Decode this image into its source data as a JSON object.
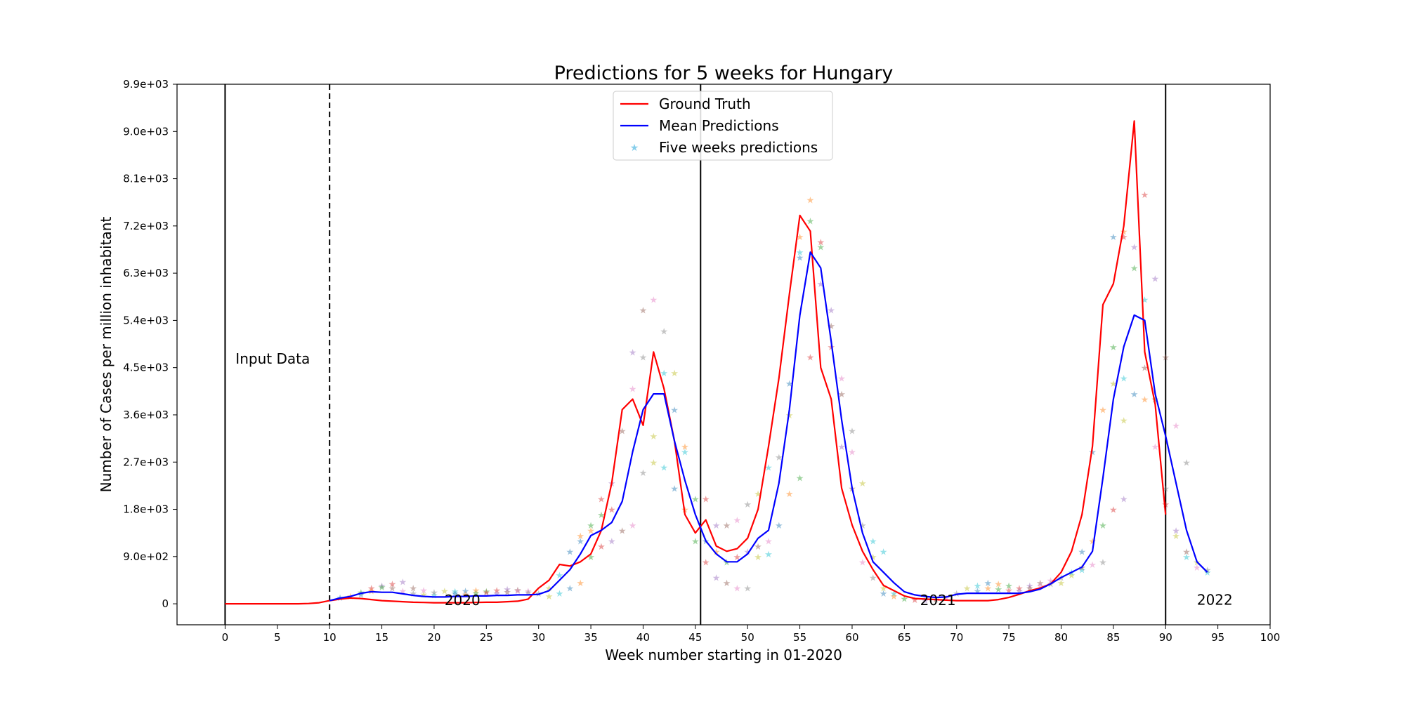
{
  "chart_data": {
    "type": "line",
    "title": "Predictions for 5 weeks for Hungary",
    "xlabel": "Week number starting in 01-2020",
    "ylabel": "Number of Cases per million inhabitant",
    "xlim": [
      -4.6,
      100
    ],
    "ylim": [
      -400,
      9900
    ],
    "x_ticks": [
      0,
      5,
      10,
      15,
      20,
      25,
      30,
      35,
      40,
      45,
      50,
      55,
      60,
      65,
      70,
      75,
      80,
      85,
      90,
      95,
      100
    ],
    "y_ticks": [
      0,
      900,
      1800,
      2700,
      3600,
      4500,
      5400,
      6300,
      7200,
      8100,
      9000,
      9900
    ],
    "y_tick_labels": [
      "0",
      "9.0e+02",
      "1.8e+03",
      "2.7e+03",
      "3.6e+03",
      "4.5e+03",
      "5.4e+03",
      "6.3e+03",
      "7.2e+03",
      "8.1e+03",
      "9.0e+03",
      "9.9e+03"
    ],
    "grid": false,
    "legend_position": "top-center",
    "series": [
      {
        "name": "Ground Truth",
        "color": "#ff0000",
        "x": [
          0,
          1,
          2,
          3,
          4,
          5,
          6,
          7,
          8,
          9,
          10,
          11,
          12,
          13,
          14,
          15,
          16,
          17,
          18,
          19,
          20,
          21,
          22,
          23,
          24,
          25,
          26,
          27,
          28,
          29,
          30,
          31,
          32,
          33,
          34,
          35,
          36,
          37,
          38,
          39,
          40,
          41,
          42,
          43,
          44,
          45,
          46,
          47,
          48,
          49,
          50,
          51,
          52,
          53,
          54,
          55,
          56,
          57,
          58,
          59,
          60,
          61,
          62,
          63,
          64,
          65,
          66,
          67,
          68,
          69,
          70,
          71,
          72,
          73,
          74,
          75,
          76,
          77,
          78,
          79,
          80,
          81,
          82,
          83,
          84,
          85,
          86,
          87,
          88,
          89,
          90
        ],
        "y": [
          0,
          0,
          0,
          0,
          0,
          0,
          0,
          0,
          5,
          20,
          60,
          90,
          110,
          100,
          80,
          60,
          50,
          40,
          30,
          25,
          20,
          20,
          20,
          20,
          25,
          30,
          30,
          40,
          50,
          90,
          300,
          450,
          750,
          720,
          800,
          950,
          1400,
          2300,
          3700,
          3900,
          3400,
          4800,
          4100,
          3100,
          1700,
          1350,
          1600,
          1100,
          1000,
          1050,
          1250,
          1800,
          3000,
          4300,
          5900,
          7400,
          7100,
          4500,
          3900,
          2200,
          1500,
          1000,
          650,
          350,
          250,
          150,
          100,
          90,
          80,
          70,
          60,
          60,
          60,
          60,
          80,
          120,
          180,
          250,
          300,
          380,
          600,
          1000,
          1700,
          3000,
          5700,
          6100,
          7200,
          9200,
          4800,
          3800,
          1700
        ]
      },
      {
        "name": "Mean Predictions",
        "color": "#0000ff",
        "x": [
          10,
          11,
          12,
          13,
          14,
          15,
          16,
          17,
          18,
          19,
          20,
          21,
          22,
          23,
          24,
          25,
          26,
          27,
          28,
          29,
          30,
          31,
          32,
          33,
          34,
          35,
          36,
          37,
          38,
          39,
          40,
          41,
          42,
          43,
          44,
          45,
          46,
          47,
          48,
          49,
          50,
          51,
          52,
          53,
          54,
          55,
          56,
          57,
          58,
          59,
          60,
          61,
          62,
          63,
          64,
          65,
          66,
          67,
          68,
          69,
          70,
          71,
          72,
          73,
          74,
          75,
          76,
          77,
          78,
          79,
          80,
          81,
          82,
          83,
          84,
          85,
          86,
          87,
          88,
          89,
          90,
          91,
          92,
          93,
          94
        ],
        "y": [
          60,
          110,
          140,
          200,
          230,
          220,
          220,
          190,
          160,
          140,
          130,
          130,
          140,
          140,
          150,
          150,
          160,
          160,
          170,
          170,
          180,
          250,
          450,
          650,
          950,
          1300,
          1400,
          1550,
          1950,
          2900,
          3700,
          4000,
          4000,
          3100,
          2350,
          1700,
          1200,
          950,
          800,
          800,
          950,
          1250,
          1400,
          2300,
          3700,
          5500,
          6700,
          6400,
          5000,
          3500,
          2200,
          1350,
          800,
          600,
          400,
          230,
          170,
          140,
          120,
          130,
          180,
          200,
          200,
          200,
          200,
          200,
          200,
          230,
          280,
          380,
          500,
          600,
          700,
          1000,
          2400,
          3900,
          4900,
          5500,
          5400,
          4000,
          3200,
          2300,
          1400,
          800,
          600
        ]
      },
      {
        "name": "Five weeks predictions",
        "type": "scatter",
        "marker": "star",
        "colors": [
          "#1f77b4",
          "#ff7f0e",
          "#2ca02c",
          "#d62728",
          "#9467bd",
          "#8c564b",
          "#e377c2",
          "#7f7f7f",
          "#bcbd22",
          "#17becf"
        ],
        "points": [
          [
            11,
            120
          ],
          [
            12,
            150
          ],
          [
            13,
            220
          ],
          [
            14,
            300
          ],
          [
            15,
            350
          ],
          [
            16,
            300
          ],
          [
            17,
            250
          ],
          [
            18,
            200
          ],
          [
            19,
            180
          ],
          [
            20,
            170
          ],
          [
            13,
            180
          ],
          [
            14,
            250
          ],
          [
            15,
            320
          ],
          [
            16,
            380
          ],
          [
            17,
            420
          ],
          [
            18,
            300
          ],
          [
            19,
            260
          ],
          [
            20,
            220
          ],
          [
            21,
            250
          ],
          [
            22,
            240
          ],
          [
            23,
            250
          ],
          [
            24,
            260
          ],
          [
            25,
            240
          ],
          [
            26,
            260
          ],
          [
            27,
            280
          ],
          [
            28,
            270
          ],
          [
            29,
            250
          ],
          [
            30,
            200
          ],
          [
            31,
            150
          ],
          [
            32,
            200
          ],
          [
            22,
            200
          ],
          [
            23,
            180
          ],
          [
            24,
            210
          ],
          [
            25,
            220
          ],
          [
            26,
            200
          ],
          [
            27,
            230
          ],
          [
            28,
            250
          ],
          [
            29,
            220
          ],
          [
            31,
            300
          ],
          [
            32,
            550
          ],
          [
            33,
            1000
          ],
          [
            34,
            1300
          ],
          [
            35,
            1500
          ],
          [
            36,
            2000
          ],
          [
            37,
            2300
          ],
          [
            38,
            3300
          ],
          [
            39,
            4100
          ],
          [
            40,
            4700
          ],
          [
            41,
            3200
          ],
          [
            42,
            2600
          ],
          [
            33,
            300
          ],
          [
            34,
            400
          ],
          [
            35,
            900
          ],
          [
            36,
            1100
          ],
          [
            37,
            1200
          ],
          [
            38,
            1400
          ],
          [
            39,
            1500
          ],
          [
            40,
            2500
          ],
          [
            41,
            2700
          ],
          [
            42,
            4400
          ],
          [
            34,
            1200
          ],
          [
            35,
            1400
          ],
          [
            36,
            1700
          ],
          [
            37,
            1800
          ],
          [
            39,
            4800
          ],
          [
            40,
            5600
          ],
          [
            41,
            5800
          ],
          [
            42,
            5200
          ],
          [
            43,
            4400
          ],
          [
            44,
            2900
          ],
          [
            43,
            3700
          ],
          [
            44,
            3000
          ],
          [
            45,
            2000
          ],
          [
            46,
            2000
          ],
          [
            47,
            1500
          ],
          [
            48,
            1500
          ],
          [
            49,
            1600
          ],
          [
            50,
            1900
          ],
          [
            51,
            2100
          ],
          [
            52,
            2600
          ],
          [
            43,
            2200
          ],
          [
            44,
            1800
          ],
          [
            45,
            1200
          ],
          [
            46,
            800
          ],
          [
            47,
            500
          ],
          [
            48,
            400
          ],
          [
            49,
            300
          ],
          [
            50,
            300
          ],
          [
            51,
            900
          ],
          [
            52,
            950
          ],
          [
            46,
            1200
          ],
          [
            47,
            1000
          ],
          [
            48,
            800
          ],
          [
            49,
            900
          ],
          [
            50,
            1000
          ],
          [
            51,
            1100
          ],
          [
            52,
            1200
          ],
          [
            53,
            2800
          ],
          [
            54,
            3600
          ],
          [
            55,
            6700
          ],
          [
            53,
            1500
          ],
          [
            54,
            2100
          ],
          [
            55,
            2400
          ],
          [
            56,
            4700
          ],
          [
            57,
            6100
          ],
          [
            58,
            5300
          ],
          [
            59,
            4300
          ],
          [
            60,
            3300
          ],
          [
            61,
            2300
          ],
          [
            62,
            1200
          ],
          [
            54,
            4200
          ],
          [
            55,
            7000
          ],
          [
            56,
            7300
          ],
          [
            57,
            6900
          ],
          [
            58,
            5600
          ],
          [
            59,
            4000
          ],
          [
            60,
            2900
          ],
          [
            61,
            1500
          ],
          [
            62,
            900
          ],
          [
            63,
            1000
          ],
          [
            55,
            6600
          ],
          [
            56,
            7700
          ],
          [
            57,
            6800
          ],
          [
            58,
            4900
          ],
          [
            59,
            3000
          ],
          [
            60,
            2200
          ],
          [
            61,
            800
          ],
          [
            62,
            500
          ],
          [
            63,
            300
          ],
          [
            64,
            200
          ],
          [
            63,
            200
          ],
          [
            64,
            150
          ],
          [
            65,
            100
          ],
          [
            66,
            80
          ],
          [
            67,
            70
          ],
          [
            68,
            90
          ],
          [
            69,
            120
          ],
          [
            70,
            200
          ],
          [
            71,
            300
          ],
          [
            72,
            350
          ],
          [
            73,
            400
          ],
          [
            74,
            380
          ],
          [
            75,
            350
          ],
          [
            76,
            300
          ],
          [
            77,
            350
          ],
          [
            78,
            400
          ],
          [
            79,
            450
          ],
          [
            80,
            500
          ],
          [
            81,
            550
          ],
          [
            82,
            650
          ],
          [
            72,
            250
          ],
          [
            73,
            300
          ],
          [
            74,
            280
          ],
          [
            75,
            260
          ],
          [
            76,
            250
          ],
          [
            77,
            300
          ],
          [
            78,
            350
          ],
          [
            79,
            380
          ],
          [
            80,
            400
          ],
          [
            81,
            600
          ],
          [
            82,
            1000
          ],
          [
            83,
            1200
          ],
          [
            84,
            1500
          ],
          [
            85,
            1800
          ],
          [
            86,
            2000
          ],
          [
            82,
            700
          ],
          [
            83,
            750
          ],
          [
            84,
            800
          ],
          [
            85,
            4200
          ],
          [
            86,
            4300
          ],
          [
            83,
            2900
          ],
          [
            84,
            3700
          ],
          [
            85,
            4900
          ],
          [
            86,
            7000
          ],
          [
            87,
            6800
          ],
          [
            88,
            4500
          ],
          [
            89,
            3000
          ],
          [
            90,
            2200
          ],
          [
            91,
            1300
          ],
          [
            92,
            900
          ],
          [
            85,
            7000
          ],
          [
            86,
            7100
          ],
          [
            87,
            6400
          ],
          [
            88,
            7800
          ],
          [
            89,
            6200
          ],
          [
            90,
            4700
          ],
          [
            91,
            3400
          ],
          [
            92,
            2700
          ],
          [
            93,
            800
          ],
          [
            94,
            600
          ],
          [
            87,
            4000
          ],
          [
            88,
            3900
          ],
          [
            89,
            3900
          ],
          [
            90,
            1900
          ],
          [
            91,
            1400
          ],
          [
            92,
            1000
          ],
          [
            93,
            700
          ],
          [
            94,
            650
          ],
          [
            86,
            3500
          ],
          [
            88,
            5800
          ]
        ]
      }
    ],
    "vertical_lines": [
      {
        "x": 0,
        "style": "solid"
      },
      {
        "x": 10,
        "style": "dashed"
      },
      {
        "x": 45.5,
        "style": "solid"
      },
      {
        "x": 90,
        "style": "solid"
      }
    ],
    "annotations": [
      {
        "text": "Input Data",
        "x": 1,
        "y": 4600
      },
      {
        "text": "2020",
        "x": 21,
        "y": 0
      },
      {
        "text": "2021",
        "x": 66.5,
        "y": 0
      },
      {
        "text": "2022",
        "x": 93,
        "y": 10
      }
    ],
    "legend": {
      "entries": [
        "Ground Truth",
        "Mean Predictions",
        "Five weeks predictions"
      ]
    }
  }
}
